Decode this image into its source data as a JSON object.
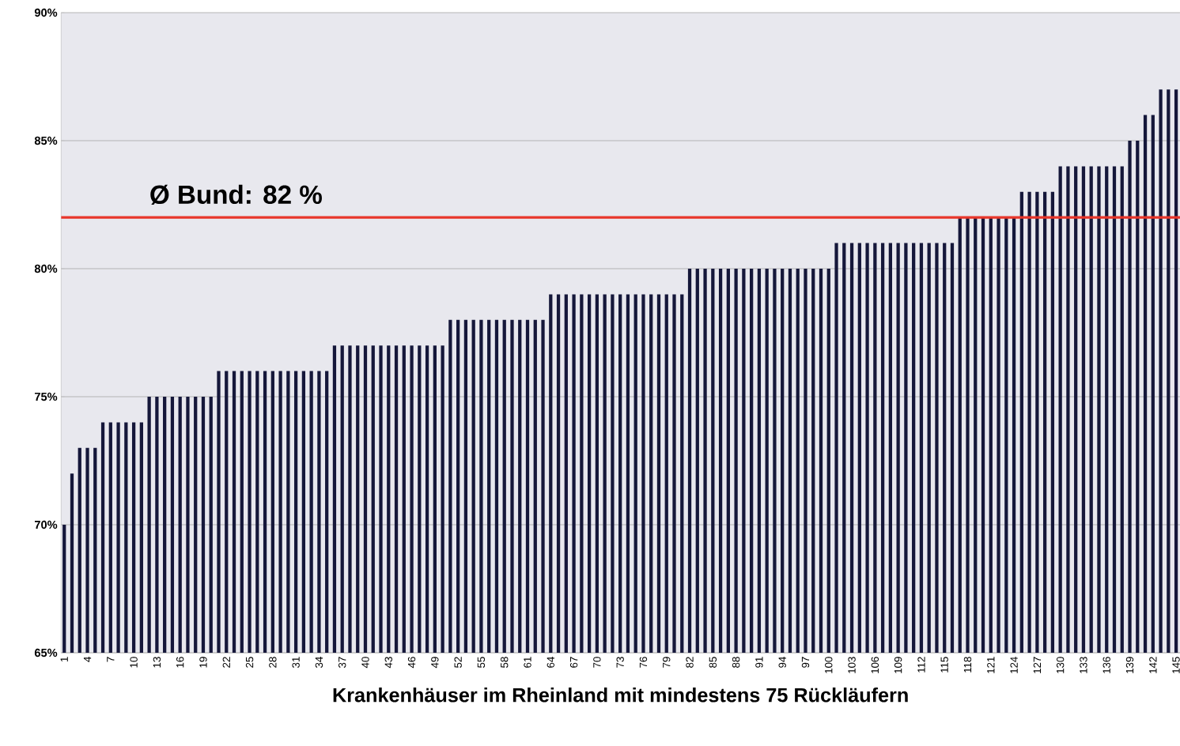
{
  "chart_data": {
    "type": "bar",
    "xlabel": "Krankenhäuser im Rheinland mit mindestens 75 Rückläufern",
    "categories": [
      "1",
      null,
      null,
      "4",
      null,
      null,
      "7",
      null,
      null,
      "10",
      null,
      null,
      "13",
      null,
      null,
      "16",
      null,
      null,
      "19",
      null,
      null,
      "22",
      null,
      null,
      "25",
      null,
      null,
      "28",
      null,
      null,
      "31",
      null,
      null,
      "34",
      null,
      null,
      "37",
      null,
      null,
      "40",
      null,
      null,
      "43",
      null,
      null,
      "46",
      null,
      null,
      "49",
      null,
      null,
      "52",
      null,
      null,
      "55",
      null,
      null,
      "58",
      null,
      null,
      "61",
      null,
      null,
      "64",
      null,
      null,
      "67",
      null,
      null,
      "70",
      null,
      null,
      "73",
      null,
      null,
      "76",
      null,
      null,
      "79",
      null,
      null,
      "82",
      null,
      null,
      "85",
      null,
      null,
      "88",
      null,
      null,
      "91",
      null,
      null,
      "94",
      null,
      null,
      "97",
      null,
      null,
      "100",
      null,
      null,
      "103",
      null,
      null,
      "106",
      null,
      null,
      "109",
      null,
      null,
      "112",
      null,
      null,
      "115",
      null,
      null,
      "118",
      null,
      null,
      "121",
      null,
      null,
      "124",
      null,
      null,
      "127",
      null,
      null,
      "130",
      null,
      null,
      "133",
      null,
      null,
      "136",
      null,
      null,
      "139",
      null,
      null,
      "142",
      null,
      null,
      "145"
    ],
    "values": [
      70,
      72,
      73,
      73,
      73,
      74,
      74,
      74,
      74,
      74,
      74,
      75,
      75,
      75,
      75,
      75,
      75,
      75,
      75,
      75,
      76,
      76,
      76,
      76,
      76,
      76,
      76,
      76,
      76,
      76,
      76,
      76,
      76,
      76,
      76,
      77,
      77,
      77,
      77,
      77,
      77,
      77,
      77,
      77,
      77,
      77,
      77,
      77,
      77,
      77,
      78,
      78,
      78,
      78,
      78,
      78,
      78,
      78,
      78,
      78,
      78,
      78,
      78,
      79,
      79,
      79,
      79,
      79,
      79,
      79,
      79,
      79,
      79,
      79,
      79,
      79,
      79,
      79,
      79,
      79,
      79,
      80,
      80,
      80,
      80,
      80,
      80,
      80,
      80,
      80,
      80,
      80,
      80,
      80,
      80,
      80,
      80,
      80,
      80,
      80,
      81,
      81,
      81,
      81,
      81,
      81,
      81,
      81,
      81,
      81,
      81,
      81,
      81,
      81,
      81,
      81,
      82,
      82,
      82,
      82,
      82,
      82,
      82,
      82,
      83,
      83,
      83,
      83,
      83,
      84,
      84,
      84,
      84,
      84,
      84,
      84,
      84,
      84,
      85,
      85,
      86,
      86,
      87,
      87,
      87
    ],
    "color": "#15173a",
    "ylim": [
      65,
      90
    ],
    "yticks": [
      {
        "value": 65,
        "label": "65%"
      },
      {
        "value": 70,
        "label": "70%"
      },
      {
        "value": 75,
        "label": "75%"
      },
      {
        "value": 80,
        "label": "80%"
      },
      {
        "value": 85,
        "label": "85%"
      },
      {
        "value": 90,
        "label": "90%"
      }
    ],
    "grid": "y",
    "ref_lines": [
      {
        "axis": "y",
        "value": 82,
        "label": "Ø Bund:  82 %",
        "color": "#e8362a"
      }
    ]
  }
}
